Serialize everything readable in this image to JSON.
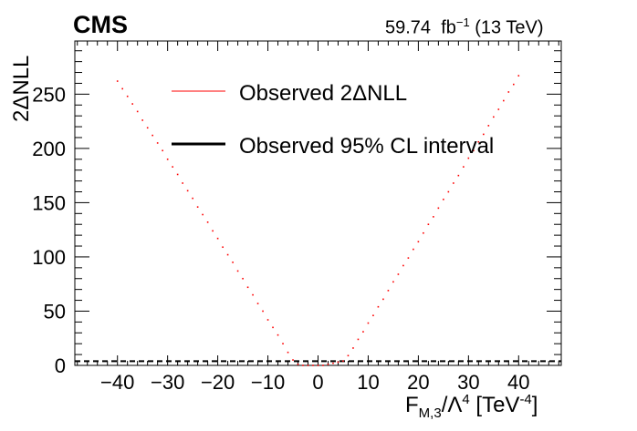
{
  "header": {
    "experiment": "CMS",
    "lumi": "59.74",
    "lumi_unit": "fb",
    "lumi_exp": "−1",
    "energy": "(13 TeV)"
  },
  "axes": {
    "xlabel_main": "F",
    "xlabel_sub": "M,3",
    "xlabel_mid": "/Λ",
    "xlabel_sup": "4",
    "xlabel_unit": " [TeV",
    "xlabel_unit_sup": "-4",
    "xlabel_close": "]",
    "ylabel": "2ΔNLL"
  },
  "legend": [
    {
      "label": "Observed 2ΔNLL",
      "color": "#ff0000",
      "style": "thin"
    },
    {
      "label": "Observed 95% CL interval",
      "color": "#000000",
      "style": "thick"
    }
  ],
  "chart_data": {
    "type": "scatter",
    "title": "",
    "xlabel": "F_{M,3}/Λ^4 [TeV^-4]",
    "ylabel": "2ΔNLL",
    "xlim": [
      -48.5,
      48.5
    ],
    "ylim": [
      0,
      299
    ],
    "x_ticks": [
      -40,
      -30,
      -20,
      -10,
      0,
      10,
      20,
      30,
      40
    ],
    "y_ticks": [
      0,
      50,
      100,
      150,
      200,
      250
    ],
    "grid": false,
    "legend_position": "top-center",
    "series": [
      {
        "name": "Observed 2ΔNLL",
        "color": "#ff0000",
        "x": [
          -40,
          -39,
          -38,
          -37,
          -36,
          -35,
          -34,
          -33,
          -32,
          -31,
          -30,
          -29,
          -28,
          -27,
          -26,
          -25,
          -24,
          -23,
          -22,
          -21,
          -20,
          -19,
          -18,
          -17,
          -16,
          -15,
          -14,
          -13,
          -12,
          -11,
          -10,
          -9,
          -8,
          -7,
          -6,
          -5,
          -4,
          -3,
          -2,
          -1,
          0,
          1,
          2,
          3,
          4,
          5,
          6,
          7,
          8,
          9,
          10,
          11,
          12,
          13,
          14,
          15,
          16,
          17,
          18,
          19,
          20,
          21,
          22,
          23,
          24,
          25,
          26,
          27,
          28,
          29,
          30,
          31,
          32,
          33,
          34,
          35,
          36,
          37,
          38,
          39,
          40
        ],
        "y": [
          262,
          255,
          248,
          241,
          234,
          226,
          219,
          212,
          205,
          198,
          190,
          183,
          176,
          168,
          161,
          154,
          146,
          139,
          132,
          124,
          117,
          109,
          102,
          95,
          87,
          80,
          72,
          65,
          57,
          50,
          42,
          35,
          28,
          20,
          12,
          5,
          1,
          0,
          0,
          0,
          0,
          0,
          1,
          2,
          3,
          4,
          9,
          16,
          24,
          31,
          39,
          46,
          54,
          61,
          69,
          77,
          84,
          92,
          99,
          107,
          114,
          122,
          130,
          137,
          145,
          153,
          160,
          168,
          175,
          183,
          191,
          198,
          206,
          213,
          221,
          229,
          236,
          244,
          252,
          259,
          267
        ]
      }
    ],
    "interval": {
      "name": "Observed 95% CL interval",
      "color": "#000000",
      "level": 3.84
    }
  }
}
